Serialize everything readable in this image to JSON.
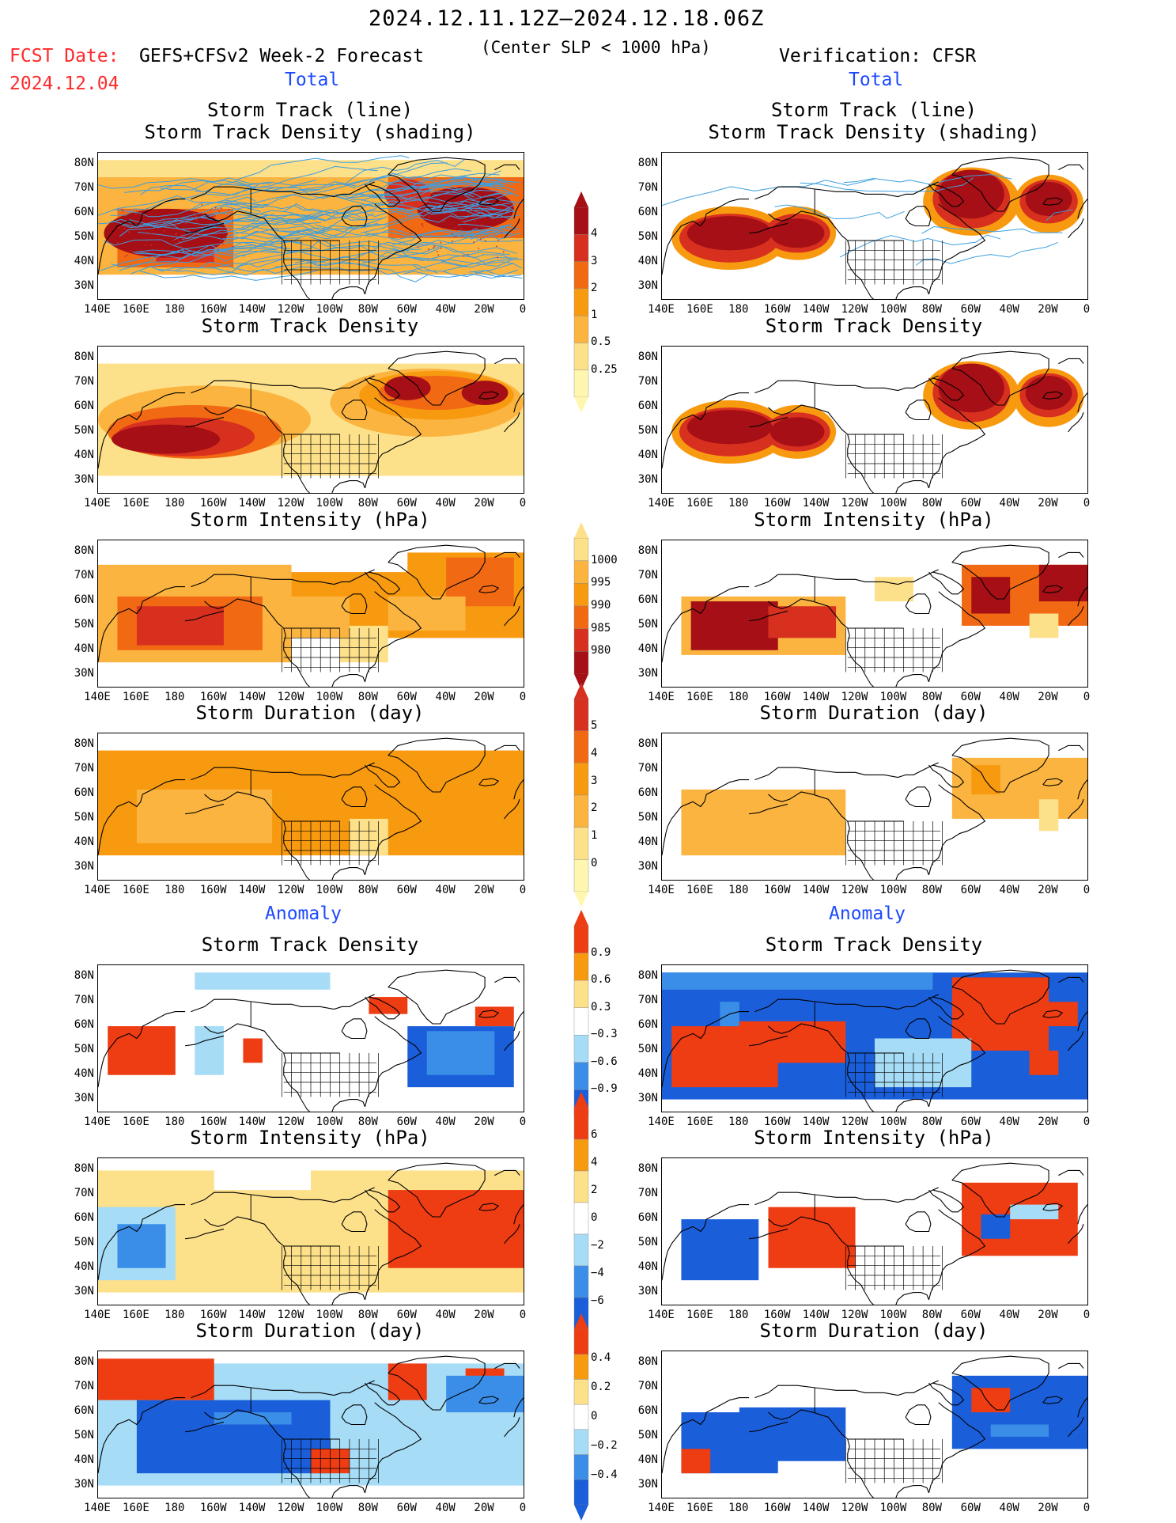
{
  "header": {
    "date_range": "2024.12.11.12Z–2024.12.18.06Z",
    "fcst_date_label": "FCST Date:",
    "fcst_date_value": "2024.12.04",
    "model": "GEFS+CFSv2 Week-2 Forecast",
    "criterion": "(Center SLP < 1000 hPa)",
    "verification": "Verification: CFSR"
  },
  "sections": {
    "total": "Total",
    "anomaly": "Anomaly"
  },
  "panel_titles": {
    "track_line": "Storm Track (line)",
    "track_shading": "Storm Track Density (shading)",
    "density": "Storm Track Density",
    "intensity": "Storm Intensity (hPa)",
    "duration": "Storm Duration (day)"
  },
  "axes": {
    "x_ticks": [
      "140E",
      "160E",
      "180",
      "160W",
      "140W",
      "120W",
      "100W",
      "80W",
      "60W",
      "40W",
      "20W",
      "0"
    ],
    "y_ticks": [
      "80N",
      "70N",
      "60N",
      "50N",
      "40N",
      "30N"
    ]
  },
  "colorbars": {
    "density_total": [
      "4",
      "3",
      "2",
      "1",
      "0.5",
      "0.25"
    ],
    "intensity_total": [
      "1000",
      "995",
      "990",
      "985",
      "980"
    ],
    "duration_total": [
      "5",
      "4",
      "3",
      "2",
      "1",
      "0"
    ],
    "density_anom": [
      "0.9",
      "0.6",
      "0.3",
      "−0.3",
      "−0.6",
      "−0.9"
    ],
    "intensity_anom": [
      "6",
      "4",
      "2",
      "0",
      "−2",
      "−4",
      "−6"
    ],
    "duration_anom": [
      "0.4",
      "0.2",
      "0",
      "−0.2",
      "−0.4"
    ]
  },
  "colors": {
    "total_scale": [
      "#fff7b0",
      "#fde08a",
      "#fbb43f",
      "#f89a10",
      "#f16913",
      "#d7301f",
      "#a50f15"
    ],
    "anom_scale": [
      "#1a5ed9",
      "#3a8ee8",
      "#a6dcf6",
      "#ffffff",
      "#fde08a",
      "#f89a10",
      "#ee3c13"
    ],
    "track_line": "#3d9ee0",
    "track_dots": "#d42a2a"
  }
}
